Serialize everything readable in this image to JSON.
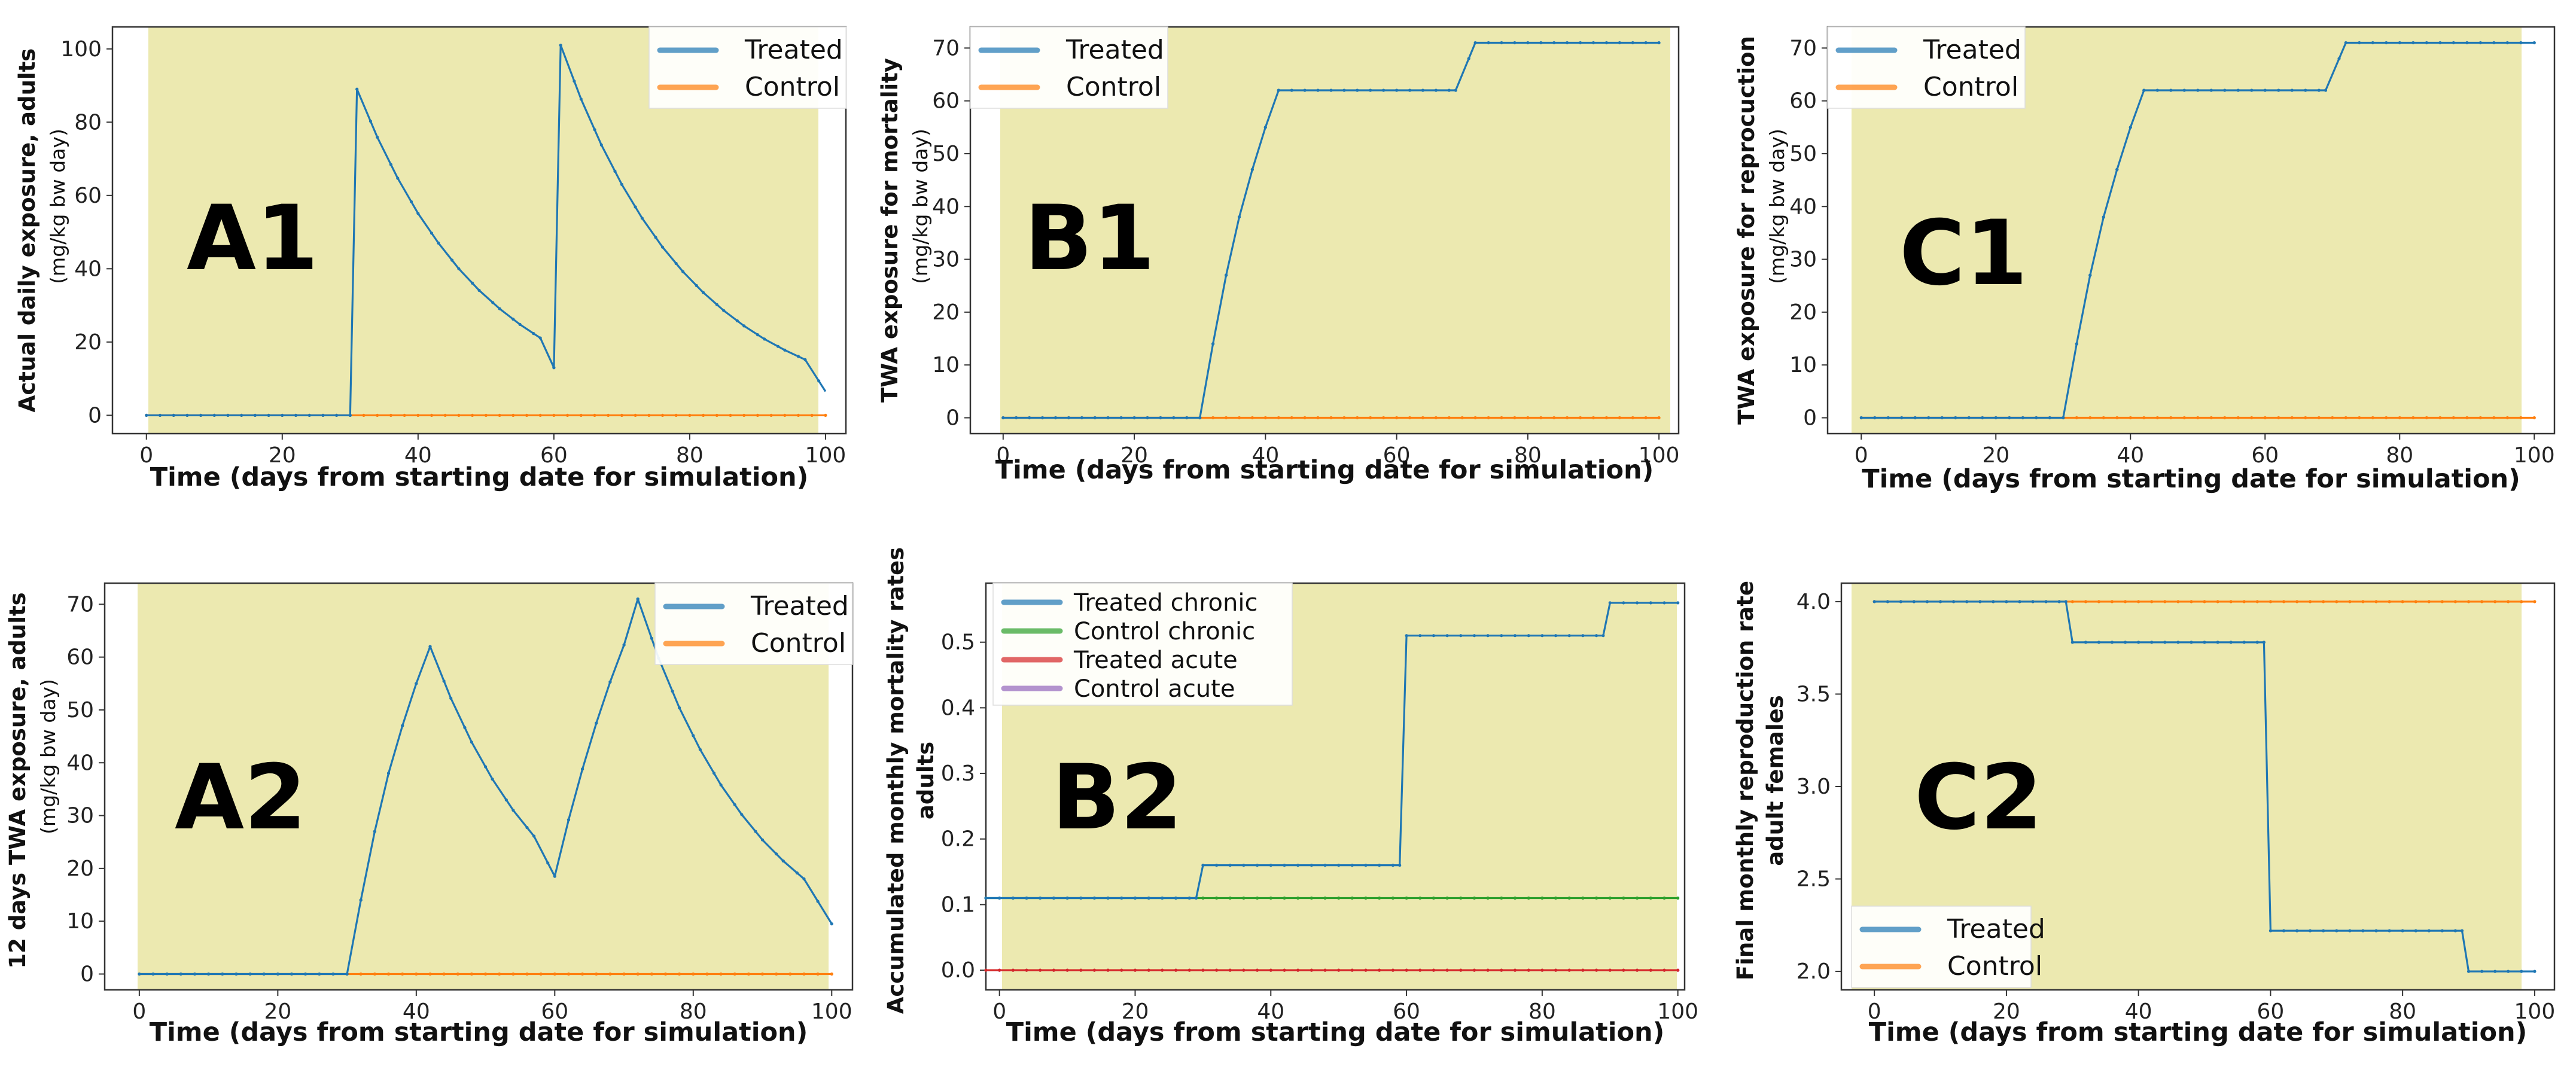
{
  "chart_data": [
    {
      "panel_label": "A1",
      "type": "line",
      "xlabel": "Time (days from starting date for simulation)",
      "ylabel": "Actual daily exposure, adults",
      "yunit": "(mg/kg bw day)",
      "xlim": [
        -5,
        103
      ],
      "ylim": [
        -5,
        106
      ],
      "xticks": [
        0,
        20,
        40,
        60,
        80,
        100
      ],
      "yticks": [
        0,
        20,
        40,
        60,
        80,
        100
      ],
      "legend_position": "top-right",
      "series": [
        {
          "name": "Treated",
          "color": "#1f77b4",
          "x": [
            0,
            30,
            31,
            34,
            37,
            40,
            43,
            46,
            49,
            52,
            55,
            58,
            60,
            61,
            64,
            67,
            70,
            73,
            76,
            79,
            82,
            85,
            88,
            91,
            94,
            97,
            100
          ],
          "y": [
            0,
            0,
            89,
            75.9,
            64.7,
            55.1,
            47.0,
            40.0,
            34.1,
            29.1,
            24.8,
            21.1,
            13,
            101,
            86.3,
            73.8,
            63.0,
            53.8,
            45.9,
            39.2,
            33.5,
            28.6,
            24.4,
            20.8,
            17.8,
            15.2,
            6.5
          ]
        },
        {
          "name": "Control",
          "color": "#ff7f0e",
          "x": [
            0,
            100
          ],
          "y": [
            0,
            0
          ]
        }
      ]
    },
    {
      "panel_label": "B1",
      "type": "line",
      "xlabel": "Time (days from starting date for simulation)",
      "ylabel": "TWA exposure for mortality",
      "yunit": "(mg/kg bw day)",
      "xlim": [
        -5,
        103
      ],
      "ylim": [
        -3,
        74
      ],
      "xticks": [
        0,
        20,
        40,
        60,
        80,
        100
      ],
      "yticks": [
        0,
        10,
        20,
        30,
        40,
        50,
        60,
        70
      ],
      "legend_position": "top-left",
      "series": [
        {
          "name": "Treated",
          "color": "#1f77b4",
          "x": [
            0,
            30,
            32,
            34,
            36,
            38,
            40,
            42,
            69,
            72,
            100
          ],
          "y": [
            0,
            0,
            14,
            27,
            38,
            47,
            55,
            62,
            62,
            71,
            71
          ]
        },
        {
          "name": "Control",
          "color": "#ff7f0e",
          "x": [
            0,
            100
          ],
          "y": [
            0,
            0
          ]
        }
      ]
    },
    {
      "panel_label": "C1",
      "type": "line",
      "xlabel": "Time (days from starting date for simulation)",
      "ylabel": "TWA exposure for reprocuction",
      "yunit": "(mg/kg bw day)",
      "xlim": [
        -5,
        103
      ],
      "ylim": [
        -3,
        74
      ],
      "xticks": [
        0,
        20,
        40,
        60,
        80,
        100
      ],
      "yticks": [
        0,
        10,
        20,
        30,
        40,
        50,
        60,
        70
      ],
      "legend_position": "top-left",
      "series": [
        {
          "name": "Treated",
          "color": "#1f77b4",
          "x": [
            0,
            30,
            32,
            34,
            36,
            38,
            40,
            42,
            69,
            72,
            100
          ],
          "y": [
            0,
            0,
            14,
            27,
            38,
            47,
            55,
            62,
            62,
            71,
            71
          ]
        },
        {
          "name": "Control",
          "color": "#ff7f0e",
          "x": [
            0,
            100
          ],
          "y": [
            0,
            0
          ]
        }
      ]
    },
    {
      "panel_label": "A2",
      "type": "line",
      "xlabel": "Time (days from starting date for simulation)",
      "ylabel": "12 days TWA exposure, adults",
      "yunit": "(mg/kg bw day)",
      "xlim": [
        -5,
        103
      ],
      "ylim": [
        -3,
        74
      ],
      "xticks": [
        0,
        20,
        40,
        60,
        80,
        100
      ],
      "yticks": [
        0,
        10,
        20,
        30,
        40,
        50,
        60,
        70
      ],
      "legend_position": "top-right",
      "series": [
        {
          "name": "Treated",
          "color": "#1f77b4",
          "x": [
            0,
            30,
            32,
            34,
            36,
            38,
            40,
            42,
            45,
            48,
            51,
            54,
            57,
            60,
            62,
            64,
            66,
            68,
            70,
            72,
            75,
            78,
            81,
            84,
            87,
            90,
            93,
            96,
            100
          ],
          "y": [
            0,
            0,
            14,
            27,
            38,
            47,
            55,
            62,
            52.2,
            43.9,
            36.9,
            31.0,
            26.1,
            18.5,
            29.2,
            38.8,
            47.5,
            55.3,
            62.3,
            71,
            59.8,
            50.4,
            42.5,
            35.8,
            30.2,
            25.4,
            21.4,
            18.0,
            9.5
          ]
        },
        {
          "name": "Control",
          "color": "#ff7f0e",
          "x": [
            0,
            100
          ],
          "y": [
            0,
            0
          ]
        }
      ]
    },
    {
      "panel_label": "B2",
      "type": "line",
      "xlabel": "Time (days from starting date for simulation)",
      "ylabel": "Accumulated monthly mortality rates",
      "ylabel2": "adults",
      "xlim": [
        -2,
        101
      ],
      "ylim": [
        -0.03,
        0.59
      ],
      "xticks": [
        0,
        20,
        40,
        60,
        80,
        100
      ],
      "yticks": [
        0.0,
        0.1,
        0.2,
        0.3,
        0.4,
        0.5
      ],
      "legend_position": "top-left",
      "series": [
        {
          "name": "Treated chronic",
          "color": "#1f77b4",
          "x": [
            -2,
            29,
            30,
            59,
            60,
            89,
            90,
            100
          ],
          "y": [
            0.11,
            0.11,
            0.16,
            0.16,
            0.51,
            0.51,
            0.56,
            0.56
          ]
        },
        {
          "name": "Control chronic",
          "color": "#2ca02c",
          "x": [
            -2,
            100
          ],
          "y": [
            0.11,
            0.11
          ]
        },
        {
          "name": "Treated acute",
          "color": "#d62728",
          "x": [
            -2,
            100
          ],
          "y": [
            0,
            0
          ]
        },
        {
          "name": "Control acute",
          "color": "#9467bd",
          "x": [
            -2,
            100
          ],
          "y": [
            0,
            0
          ]
        }
      ]
    },
    {
      "panel_label": "C2",
      "type": "line",
      "xlabel": "Time (days from starting date for simulation)",
      "ylabel": "Final monthly reproduction rate",
      "ylabel2": "adult females",
      "xlim": [
        -5,
        103
      ],
      "ylim": [
        1.9,
        4.1
      ],
      "xticks": [
        0,
        20,
        40,
        60,
        80,
        100
      ],
      "yticks": [
        2.0,
        2.5,
        3.0,
        3.5,
        4.0
      ],
      "legend_position": "bottom-left",
      "series": [
        {
          "name": "Treated",
          "color": "#1f77b4",
          "x": [
            0,
            29,
            30,
            59,
            60,
            89,
            90,
            100
          ],
          "y": [
            4.0,
            4.0,
            3.78,
            3.78,
            2.22,
            2.22,
            2.0,
            2.0
          ]
        },
        {
          "name": "Control",
          "color": "#ff7f0e",
          "x": [
            0,
            100
          ],
          "y": [
            4.0,
            4.0
          ]
        }
      ]
    }
  ]
}
